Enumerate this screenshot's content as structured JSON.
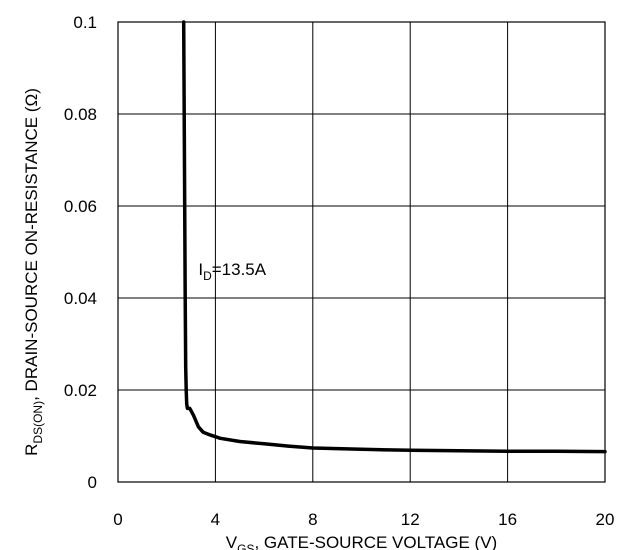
{
  "chart_data": {
    "type": "line",
    "xlabel": {
      "main": "V",
      "sub": "GS",
      "rest": ", GATE-SOURCE VOLTAGE (V)"
    },
    "ylabel": {
      "main": "R",
      "sub": "DS(ON)",
      "rest": ", DRAIN-SOURCE ON-RESISTANCE (Ω)"
    },
    "xlim": [
      0,
      20
    ],
    "ylim": [
      0,
      0.1
    ],
    "x_ticks": [
      0,
      4,
      8,
      12,
      16,
      20
    ],
    "y_ticks": [
      0,
      0.02,
      0.04,
      0.06,
      0.08,
      0.1
    ],
    "x_tick_labels": [
      "0",
      "4",
      "8",
      "12",
      "16",
      "20"
    ],
    "y_tick_labels": [
      "0",
      "0.02",
      "0.04",
      "0.06",
      "0.08",
      "0.1"
    ],
    "grid": true,
    "annotation": {
      "main": "I",
      "sub": "D",
      "rest": "=13.5A",
      "x": 3.3,
      "y": 0.045
    },
    "series": [
      {
        "x": [
          2.7,
          2.72,
          2.74,
          2.76,
          2.78,
          2.8,
          2.82,
          2.85,
          2.95,
          3.1,
          3.3,
          3.5,
          3.8,
          4.2,
          5,
          6,
          7,
          8,
          10,
          12,
          14,
          16,
          18,
          20
        ],
        "y": [
          0.1,
          0.08,
          0.06,
          0.04,
          0.025,
          0.02,
          0.017,
          0.016,
          0.016,
          0.0145,
          0.012,
          0.0108,
          0.0102,
          0.0095,
          0.0088,
          0.0083,
          0.0078,
          0.0074,
          0.0071,
          0.0069,
          0.0068,
          0.0067,
          0.0067,
          0.0066
        ]
      }
    ]
  }
}
